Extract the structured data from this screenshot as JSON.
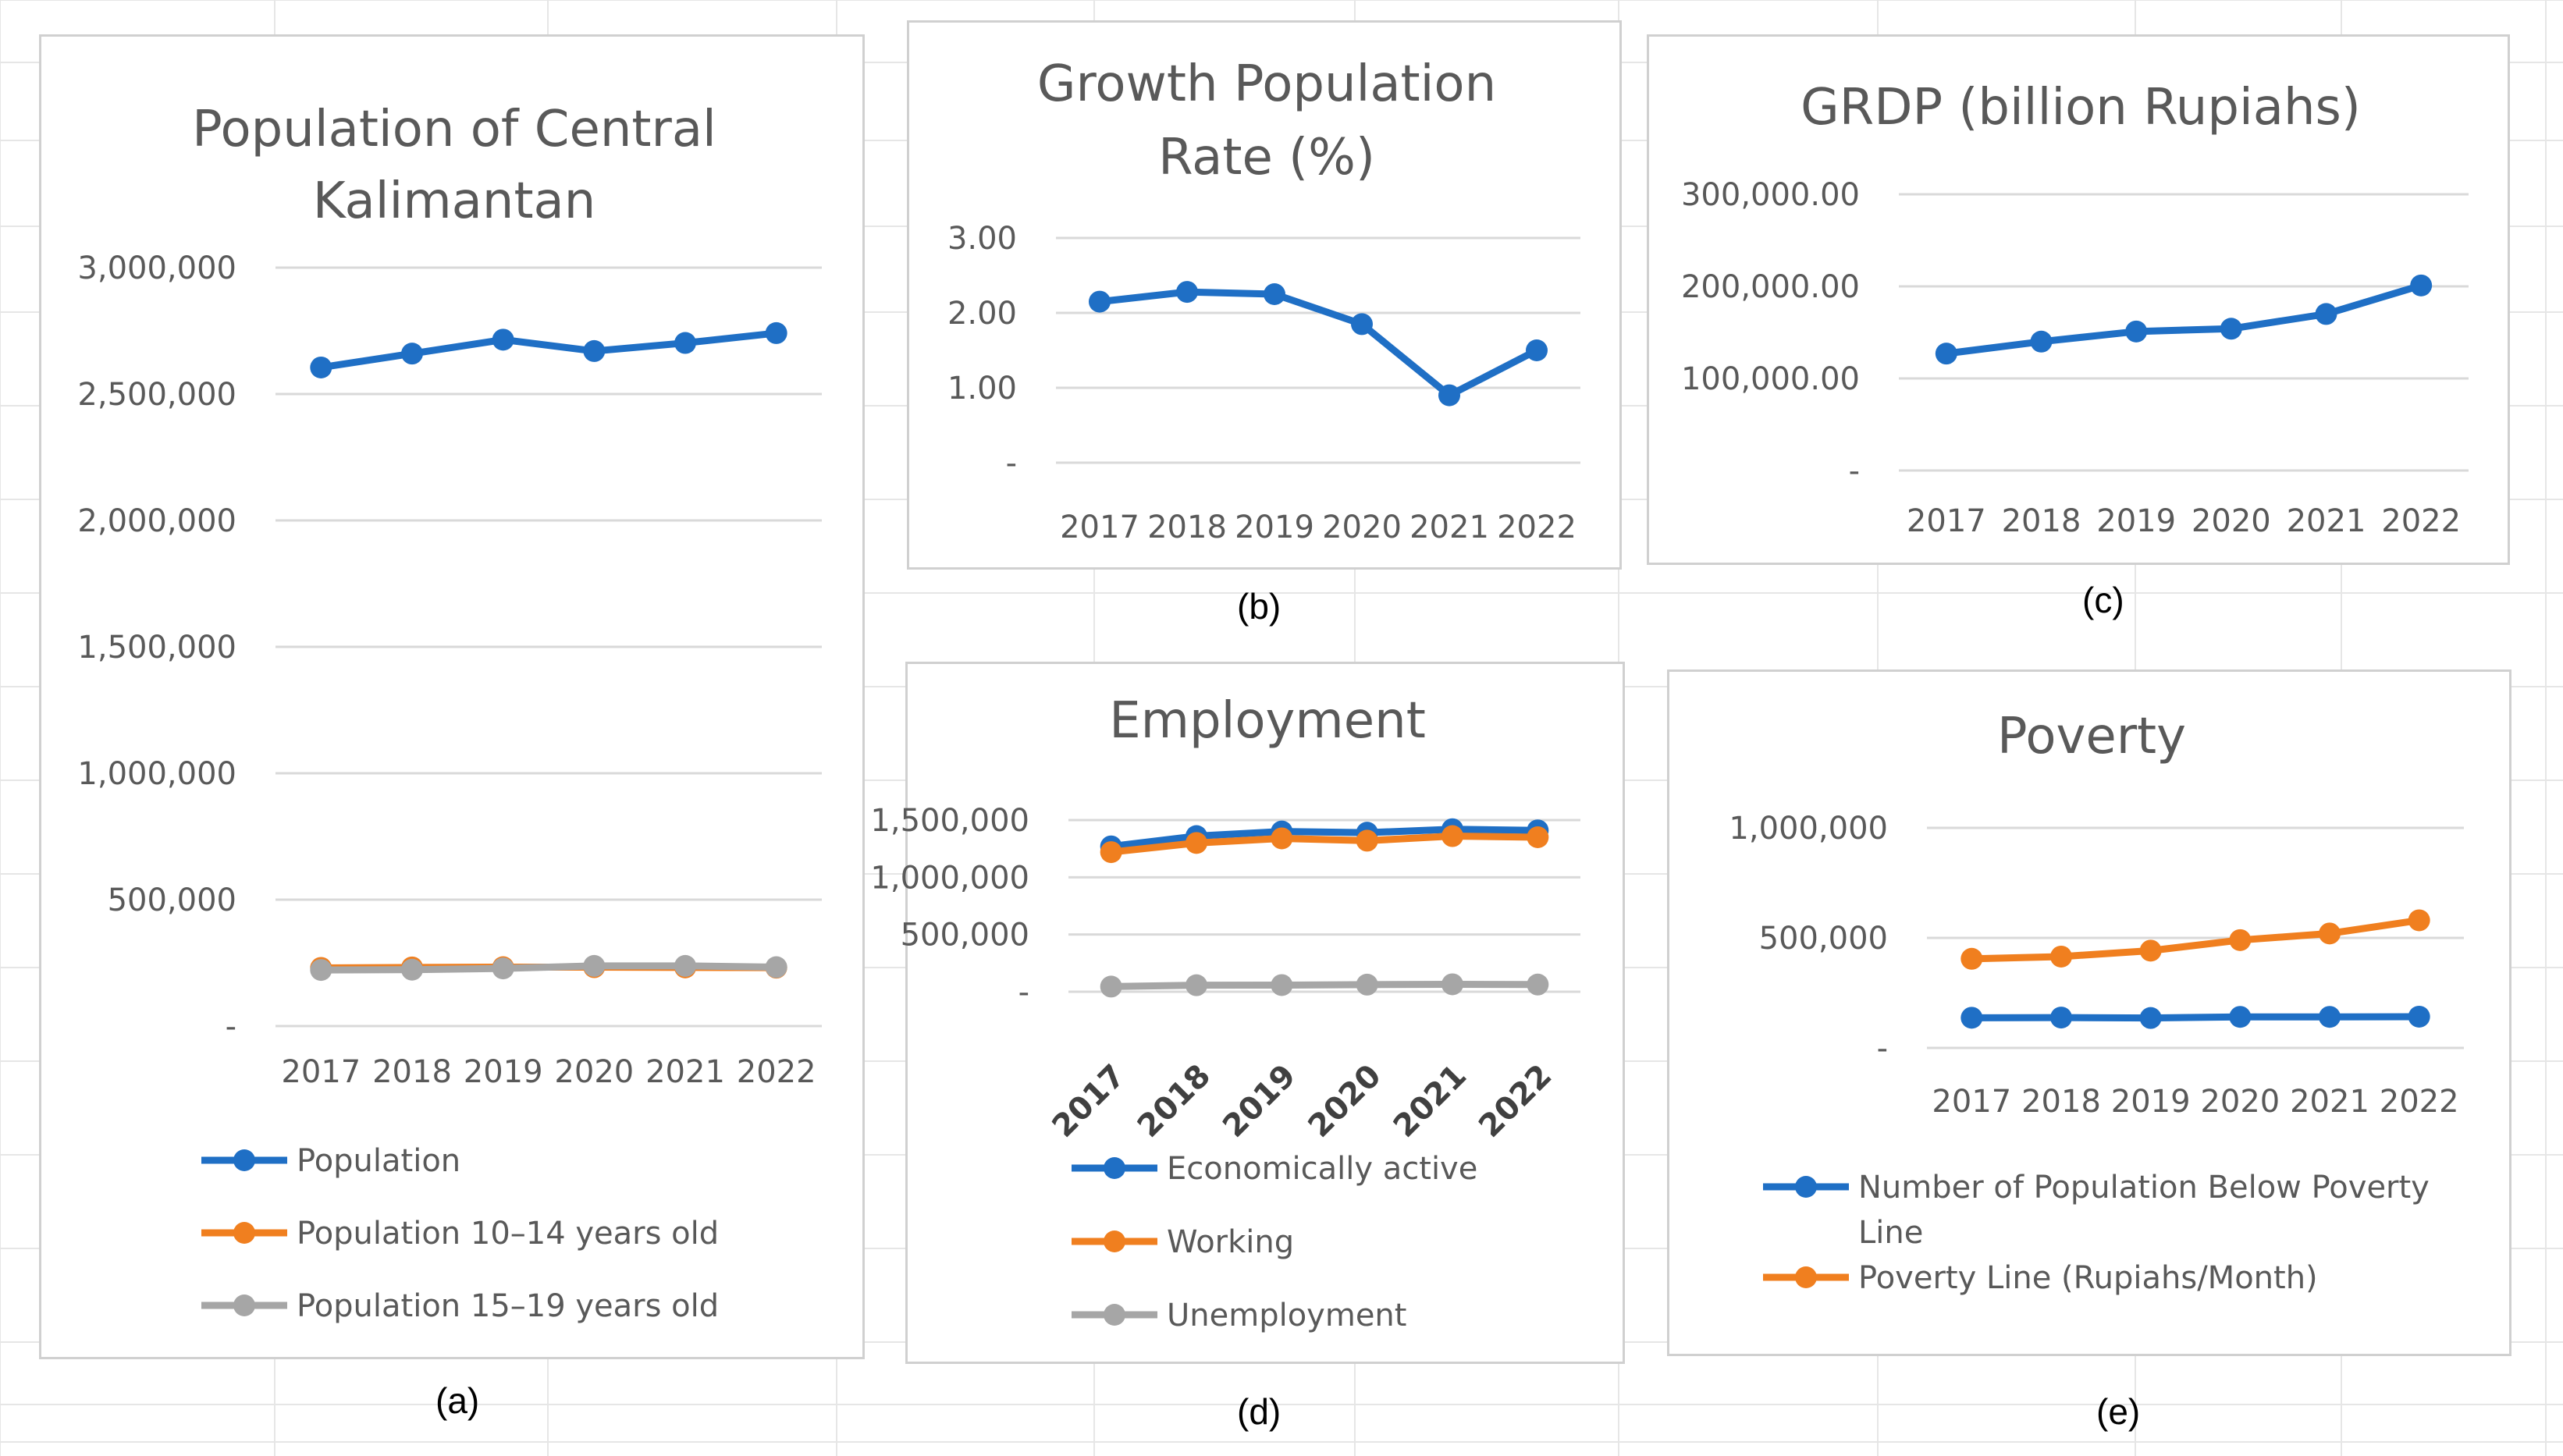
{
  "colors": {
    "blue": "#1f6fc5",
    "orange": "#f07f1f",
    "gray": "#a6a6a6",
    "grid": "#d9d9d9",
    "text": "#595959"
  },
  "captions": {
    "a": "(a)",
    "b": "(b)",
    "c": "(c)",
    "d": "(d)",
    "e": "(e)"
  },
  "chart_data": [
    {
      "id": "a",
      "type": "line",
      "title": "Population of Central Kalimantan",
      "categories": [
        "2017",
        "2018",
        "2019",
        "2020",
        "2021",
        "2022"
      ],
      "ylim": [
        0,
        3000000
      ],
      "yticks": [
        "-",
        "500,000",
        "1,000,000",
        "1,500,000",
        "2,000,000",
        "2,500,000",
        "3,000,000"
      ],
      "series": [
        {
          "name": "Population",
          "color": "blue",
          "values": [
            2605000,
            2660000,
            2715000,
            2670000,
            2702000,
            2741000
          ]
        },
        {
          "name": "Population 10–14 years old",
          "color": "orange",
          "values": [
            230000,
            232000,
            233000,
            233000,
            232000,
            231000
          ]
        },
        {
          "name": "Population 15–19 years old",
          "color": "gray",
          "values": [
            222000,
            223000,
            228000,
            238000,
            238000,
            233000
          ]
        }
      ],
      "legend": "bottom"
    },
    {
      "id": "b",
      "type": "line",
      "title": "Growth Population Rate (%)",
      "categories": [
        "2017",
        "2018",
        "2019",
        "2020",
        "2021",
        "2022"
      ],
      "ylim": [
        0,
        3
      ],
      "yticks": [
        "-",
        "1.00",
        "2.00",
        "3.00"
      ],
      "series": [
        {
          "name": "Growth Population Rate",
          "color": "blue",
          "values": [
            2.15,
            2.28,
            2.25,
            1.85,
            0.9,
            1.5
          ]
        }
      ],
      "legend": "none"
    },
    {
      "id": "c",
      "type": "line",
      "title": "GRDP (billion Rupiahs)",
      "categories": [
        "2017",
        "2018",
        "2019",
        "2020",
        "2021",
        "2022"
      ],
      "ylim": [
        0,
        300000
      ],
      "yticks": [
        "-",
        "100,000.00",
        "200,000.00",
        "300,000.00"
      ],
      "series": [
        {
          "name": "GRDP",
          "color": "blue",
          "values": [
            127000,
            140000,
            151000,
            154000,
            170000,
            201000
          ]
        }
      ],
      "legend": "none"
    },
    {
      "id": "d",
      "type": "line",
      "title": "Employment",
      "categories": [
        "2017",
        "2018",
        "2019",
        "2020",
        "2021",
        "2022"
      ],
      "ylim": [
        0,
        1500000
      ],
      "yticks": [
        "-",
        "500,000",
        "1,000,000",
        "1,500,000"
      ],
      "series": [
        {
          "name": "Economically active",
          "color": "blue",
          "values": [
            1270000,
            1360000,
            1400000,
            1390000,
            1420000,
            1410000
          ]
        },
        {
          "name": "Working",
          "color": "orange",
          "values": [
            1220000,
            1300000,
            1340000,
            1320000,
            1360000,
            1350000
          ]
        },
        {
          "name": "Unemployment",
          "color": "gray",
          "values": [
            45000,
            57000,
            58000,
            62000,
            65000,
            63000
          ]
        }
      ],
      "legend": "bottom"
    },
    {
      "id": "e",
      "type": "line",
      "title": "Poverty",
      "categories": [
        "2017",
        "2018",
        "2019",
        "2020",
        "2021",
        "2022"
      ],
      "ylim": [
        0,
        1000000
      ],
      "yticks": [
        "-",
        "500,000",
        "1,000,000"
      ],
      "series": [
        {
          "name": "Number of Population Below Poverty Line",
          "color": "blue",
          "values": [
            137000,
            138000,
            136000,
            141000,
            141000,
            142000
          ]
        },
        {
          "name": "Poverty Line (Rupiahs/Month)",
          "color": "orange",
          "values": [
            405000,
            415000,
            442000,
            490000,
            520000,
            580000
          ]
        }
      ],
      "legend": "bottom"
    }
  ]
}
